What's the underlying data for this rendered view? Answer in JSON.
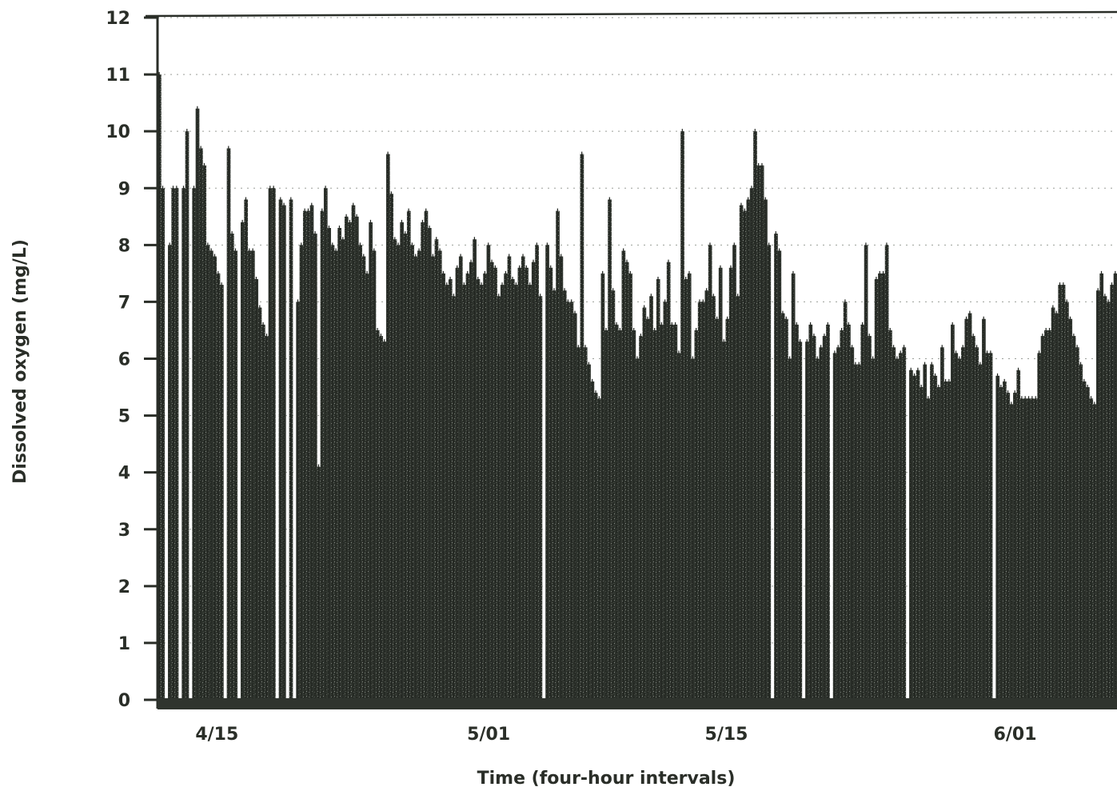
{
  "chart_data": {
    "type": "bar",
    "title": "",
    "xlabel": "Time (four-hour intervals)",
    "ylabel": "Dissolved oxygen (mg/L)",
    "ylim": [
      0,
      12
    ],
    "y_ticks": [
      "0",
      "1",
      "2",
      "3",
      "4",
      "5",
      "6",
      "7",
      "8",
      "9",
      "10",
      "11",
      "12"
    ],
    "x_tick_labels": [
      {
        "label": "4/15",
        "day": 0
      },
      {
        "label": "5/01",
        "day": 16
      },
      {
        "label": "5/15",
        "day": 30
      },
      {
        "label": "6/01",
        "day": 47
      }
    ],
    "x_range_days": [
      -3.5,
      53
    ],
    "interval_hours": 4,
    "bar_color": "#2f342e",
    "grid": "horizontal dotted lines at each integer",
    "series": [
      {
        "values": [
          11.0,
          9.0,
          0,
          8.0,
          9.0,
          9.0,
          0,
          9.0,
          10.0,
          0,
          9.0,
          10.4,
          9.7,
          9.4,
          8.0,
          7.9,
          7.8,
          7.5,
          7.3,
          0,
          9.7,
          8.2,
          7.9,
          0,
          8.4,
          8.8,
          7.9,
          7.9,
          7.4,
          6.9,
          6.6,
          6.4,
          9.0,
          9.0,
          0,
          8.8,
          8.7,
          0,
          8.8,
          0,
          7.0,
          8.0,
          8.6,
          8.6,
          8.7,
          8.2,
          4.1,
          8.6,
          9.0,
          8.3,
          8.0,
          7.9,
          8.3,
          8.1,
          8.5,
          8.4,
          8.7,
          8.5,
          8.0,
          7.8,
          7.5,
          8.4,
          7.9,
          6.5,
          6.4,
          6.3,
          9.6,
          8.9,
          8.1,
          8.0,
          8.4,
          8.2,
          8.6,
          8.0,
          7.8,
          7.9,
          8.4,
          8.6,
          8.3,
          7.8,
          8.1,
          7.9,
          7.5,
          7.3,
          7.4,
          7.1,
          7.6,
          7.8,
          7.3,
          7.5,
          7.7,
          8.1,
          7.4,
          7.3,
          7.5,
          8.0,
          7.7,
          7.6,
          7.1,
          7.3,
          7.5,
          7.8,
          7.4,
          7.3,
          7.6,
          7.8,
          7.6,
          7.3,
          7.7,
          8.0,
          7.1,
          0,
          8.0,
          7.6,
          7.2,
          8.6,
          7.8,
          7.2,
          7.0,
          7.0,
          6.8,
          6.2,
          9.6,
          6.2,
          5.9,
          5.6,
          5.4,
          5.3,
          7.5,
          6.5,
          8.8,
          7.2,
          6.6,
          6.5,
          7.9,
          7.7,
          7.5,
          6.5,
          6.0,
          6.4,
          6.9,
          6.7,
          7.1,
          6.5,
          7.4,
          6.6,
          7.0,
          7.7,
          6.6,
          6.6,
          6.1,
          10.0,
          7.4,
          7.5,
          6.0,
          6.5,
          7.0,
          7.0,
          7.2,
          8.0,
          7.1,
          6.7,
          7.6,
          6.3,
          6.7,
          7.6,
          8.0,
          7.1,
          8.7,
          8.6,
          8.8,
          9.0,
          10.0,
          9.4,
          9.4,
          8.8,
          8.0,
          0,
          8.2,
          7.9,
          6.8,
          6.7,
          6.0,
          7.5,
          6.6,
          6.3,
          0,
          6.3,
          6.6,
          6.4,
          6.0,
          6.2,
          6.4,
          6.6,
          0,
          6.1,
          6.2,
          6.5,
          7.0,
          6.6,
          6.2,
          5.9,
          5.9,
          6.6,
          8.0,
          6.4,
          6.0,
          7.4,
          7.5,
          7.5,
          8.0,
          6.5,
          6.2,
          6.0,
          6.1,
          6.2,
          0,
          5.8,
          5.7,
          5.8,
          5.5,
          5.9,
          5.3,
          5.9,
          5.7,
          5.5,
          6.2,
          5.6,
          5.6,
          6.6,
          6.1,
          6.0,
          6.2,
          6.7,
          6.8,
          6.4,
          6.2,
          5.9,
          6.7,
          6.1,
          6.1,
          0,
          5.7,
          5.5,
          5.6,
          5.4,
          5.2,
          5.4,
          5.8,
          5.3,
          5.3,
          5.3,
          5.3,
          5.3,
          6.1,
          6.4,
          6.5,
          6.5,
          6.9,
          6.8,
          7.3,
          7.3,
          7.0,
          6.7,
          6.4,
          6.2,
          5.9,
          5.6,
          5.5,
          5.3,
          5.2,
          7.2,
          7.5,
          7.1,
          7.0,
          7.3,
          7.5
        ]
      }
    ]
  }
}
